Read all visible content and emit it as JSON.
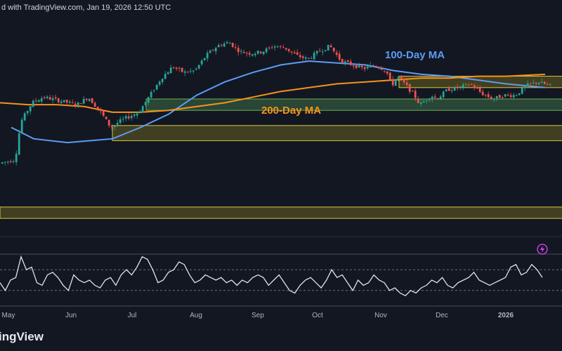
{
  "header": {
    "published": "d with TradingView.com, Jan 19, 2026 12:50 UTC"
  },
  "brand": "ingView",
  "colors": {
    "background": "#131722",
    "up": "#26a69a",
    "down": "#ef5350",
    "ma100": "#5b9cf6",
    "ma200": "#f7931a",
    "zone_green_fill": "#2e4f3a",
    "zone_green_border": "#6ab04c",
    "zone_yellow_fill": "#4a4621",
    "zone_yellow_border": "#d7c64a",
    "rsi_line": "#dfe3ec"
  },
  "chart_data": [
    {
      "type": "candlestick",
      "title": "",
      "x_axis": [
        "May",
        "Jun",
        "Jul",
        "Aug",
        "Sep",
        "Oct",
        "Nov",
        "Dec",
        "2026"
      ],
      "series": [
        {
          "name": "100-Day MA",
          "color": "#5b9cf6",
          "values": [
            [
              0.02,
              0.55
            ],
            [
              0.06,
              0.49
            ],
            [
              0.12,
              0.47
            ],
            [
              0.2,
              0.49
            ],
            [
              0.25,
              0.55
            ],
            [
              0.3,
              0.62
            ],
            [
              0.35,
              0.72
            ],
            [
              0.4,
              0.79
            ],
            [
              0.45,
              0.84
            ],
            [
              0.5,
              0.88
            ],
            [
              0.55,
              0.9
            ],
            [
              0.6,
              0.89
            ],
            [
              0.65,
              0.88
            ],
            [
              0.7,
              0.85
            ],
            [
              0.75,
              0.83
            ],
            [
              0.8,
              0.82
            ],
            [
              0.85,
              0.8
            ],
            [
              0.9,
              0.78
            ],
            [
              0.97,
              0.76
            ]
          ]
        },
        {
          "name": "200-Day MA",
          "color": "#f7931a",
          "values": [
            [
              0.0,
              0.68
            ],
            [
              0.05,
              0.67
            ],
            [
              0.1,
              0.67
            ],
            [
              0.15,
              0.66
            ],
            [
              0.2,
              0.63
            ],
            [
              0.25,
              0.63
            ],
            [
              0.3,
              0.64
            ],
            [
              0.35,
              0.66
            ],
            [
              0.4,
              0.68
            ],
            [
              0.45,
              0.71
            ],
            [
              0.5,
              0.74
            ],
            [
              0.55,
              0.76
            ],
            [
              0.6,
              0.78
            ],
            [
              0.65,
              0.79
            ],
            [
              0.7,
              0.8
            ],
            [
              0.75,
              0.81
            ],
            [
              0.8,
              0.81
            ],
            [
              0.85,
              0.82
            ],
            [
              0.9,
              0.82
            ],
            [
              0.97,
              0.83
            ]
          ]
        }
      ],
      "annotations": [
        {
          "text": "100-Day MA",
          "color": "#5b9cf6"
        },
        {
          "text": "200-Day MA",
          "color": "#f7931a"
        }
      ],
      "zones": [
        {
          "kind": "resistance",
          "color": "yellow",
          "from_x": 0.71,
          "y_low": 0.76,
          "y_high": 0.82
        },
        {
          "kind": "support",
          "color": "green",
          "from_x": 0.26,
          "y_low": 0.64,
          "y_high": 0.7
        },
        {
          "kind": "support",
          "color": "yellow",
          "from_x": 0.2,
          "y_low": 0.48,
          "y_high": 0.56
        },
        {
          "kind": "support",
          "color": "yellow",
          "from_x": 0.0,
          "y_low": 0.07,
          "y_high": 0.13
        }
      ],
      "price_path": [
        [
          0.0,
          0.36
        ],
        [
          0.03,
          0.38
        ],
        [
          0.04,
          0.58
        ],
        [
          0.06,
          0.68
        ],
        [
          0.08,
          0.71
        ],
        [
          0.11,
          0.69
        ],
        [
          0.14,
          0.67
        ],
        [
          0.16,
          0.71
        ],
        [
          0.18,
          0.64
        ],
        [
          0.2,
          0.55
        ],
        [
          0.22,
          0.59
        ],
        [
          0.25,
          0.63
        ],
        [
          0.27,
          0.72
        ],
        [
          0.29,
          0.81
        ],
        [
          0.31,
          0.87
        ],
        [
          0.33,
          0.84
        ],
        [
          0.35,
          0.85
        ],
        [
          0.37,
          0.93
        ],
        [
          0.39,
          0.98
        ],
        [
          0.41,
          1.0
        ],
        [
          0.43,
          0.95
        ],
        [
          0.45,
          0.94
        ],
        [
          0.47,
          0.95
        ],
        [
          0.49,
          0.98
        ],
        [
          0.51,
          0.97
        ],
        [
          0.53,
          0.93
        ],
        [
          0.55,
          0.91
        ],
        [
          0.57,
          0.95
        ],
        [
          0.59,
          0.98
        ],
        [
          0.61,
          0.9
        ],
        [
          0.63,
          0.88
        ],
        [
          0.65,
          0.86
        ],
        [
          0.67,
          0.88
        ],
        [
          0.69,
          0.85
        ],
        [
          0.7,
          0.77
        ],
        [
          0.71,
          0.82
        ],
        [
          0.72,
          0.79
        ],
        [
          0.74,
          0.72
        ],
        [
          0.75,
          0.67
        ],
        [
          0.77,
          0.72
        ],
        [
          0.78,
          0.7
        ],
        [
          0.8,
          0.75
        ],
        [
          0.82,
          0.76
        ],
        [
          0.84,
          0.78
        ],
        [
          0.86,
          0.73
        ],
        [
          0.88,
          0.7
        ],
        [
          0.9,
          0.72
        ],
        [
          0.92,
          0.72
        ],
        [
          0.94,
          0.77
        ],
        [
          0.96,
          0.79
        ],
        [
          0.98,
          0.77
        ]
      ]
    },
    {
      "type": "line",
      "title": "",
      "series": [
        {
          "name": "",
          "color": "#dfe3ec",
          "values": [
            0.45,
            0.3,
            0.5,
            0.55,
            0.95,
            0.7,
            0.75,
            0.45,
            0.4,
            0.6,
            0.65,
            0.55,
            0.4,
            0.3,
            0.6,
            0.5,
            0.45,
            0.5,
            0.4,
            0.35,
            0.5,
            0.55,
            0.4,
            0.6,
            0.7,
            0.6,
            0.75,
            0.95,
            0.9,
            0.7,
            0.45,
            0.5,
            0.65,
            0.7,
            0.85,
            0.8,
            0.6,
            0.45,
            0.5,
            0.6,
            0.55,
            0.5,
            0.55,
            0.45,
            0.5,
            0.4,
            0.5,
            0.45,
            0.55,
            0.6,
            0.55,
            0.4,
            0.5,
            0.6,
            0.45,
            0.3,
            0.25,
            0.4,
            0.5,
            0.55,
            0.45,
            0.35,
            0.5,
            0.7,
            0.55,
            0.6,
            0.45,
            0.3,
            0.5,
            0.4,
            0.45,
            0.6,
            0.5,
            0.45,
            0.3,
            0.35,
            0.25,
            0.2,
            0.3,
            0.25,
            0.35,
            0.4,
            0.5,
            0.45,
            0.55,
            0.4,
            0.35,
            0.45,
            0.5,
            0.55,
            0.65,
            0.5,
            0.45,
            0.4,
            0.45,
            0.5,
            0.55,
            0.75,
            0.8,
            0.6,
            0.65,
            0.8,
            0.7,
            0.55
          ]
        }
      ],
      "reference_lines": [
        0.3,
        0.7
      ]
    }
  ]
}
